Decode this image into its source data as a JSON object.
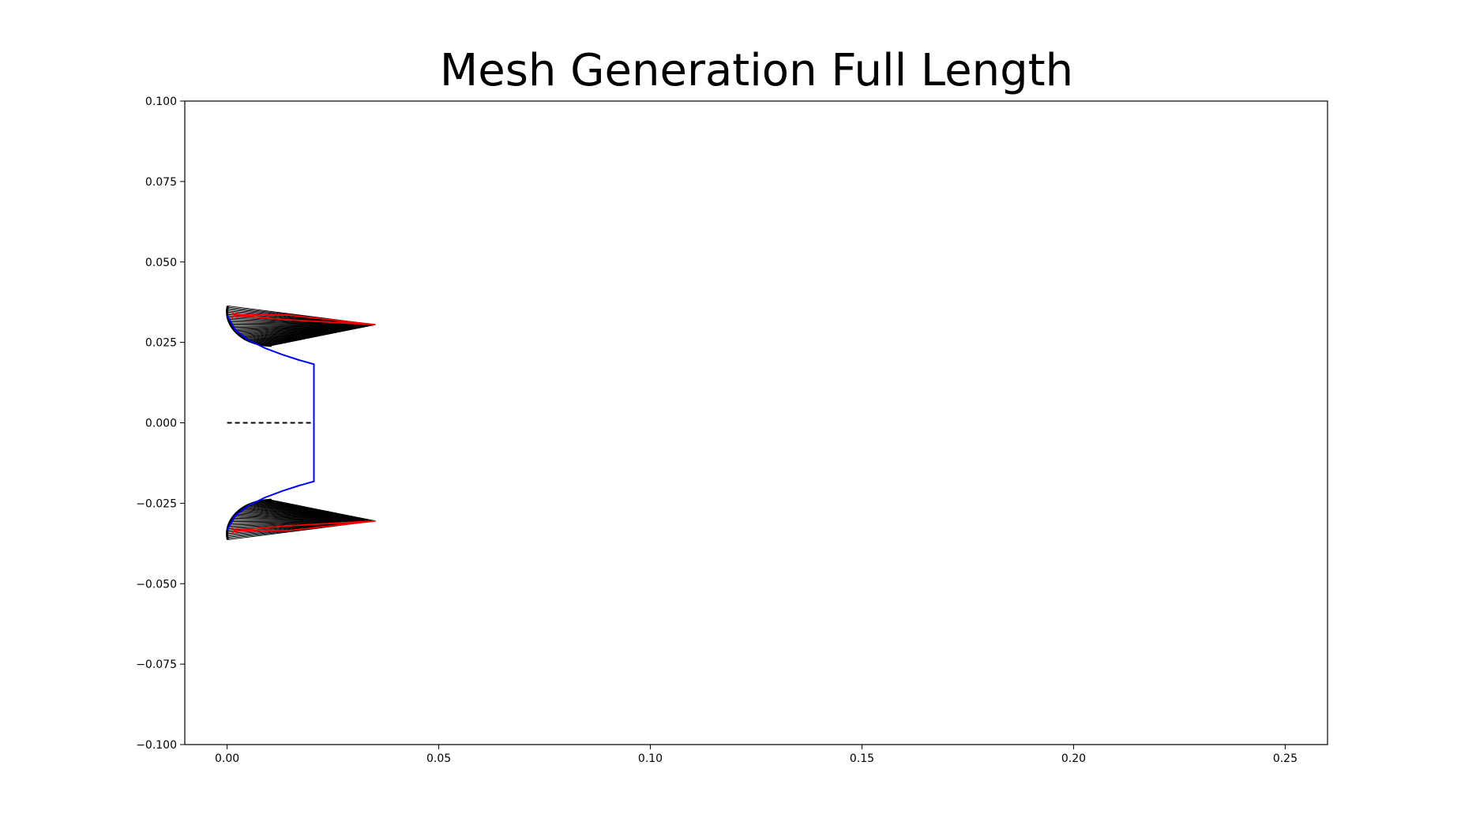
{
  "chart_data": {
    "type": "line",
    "title": "Mesh Generation Full Length",
    "xlabel": "",
    "ylabel": "",
    "xlim": [
      -0.01,
      0.26
    ],
    "ylim": [
      -0.1,
      0.1
    ],
    "x_ticks": [
      0.0,
      0.05,
      0.1,
      0.15,
      0.2,
      0.25
    ],
    "x_tick_labels": [
      "0.00",
      "0.05",
      "0.10",
      "0.15",
      "0.20",
      "0.25"
    ],
    "y_ticks": [
      0.1,
      0.075,
      0.05,
      0.025,
      0.0,
      -0.025,
      -0.05,
      -0.075,
      -0.1
    ],
    "y_tick_labels": [
      "0.100",
      "0.075",
      "0.050",
      "0.025",
      "0.000",
      "−0.025",
      "−0.050",
      "−0.075",
      "−0.100"
    ],
    "grid": false,
    "colors": {
      "contour": "#0000ff",
      "mesh": "#000000",
      "outline": "#ff0000",
      "axis_line": "#000000"
    },
    "series": [
      {
        "style": "blue-solid",
        "x": [
          0.0001,
          0.002,
          0.005,
          0.009,
          0.013,
          0.017,
          0.0205,
          0.0205,
          0.0205,
          0.017,
          0.013,
          0.009,
          0.005,
          0.002,
          0.0001
        ],
        "y": [
          0.0332,
          0.0288,
          0.0258,
          0.0232,
          0.0212,
          0.0195,
          0.0182,
          0.0,
          -0.0182,
          -0.0195,
          -0.0212,
          -0.0232,
          -0.0258,
          -0.0288,
          -0.0332
        ]
      },
      {
        "style": "black-dashed",
        "x": [
          0.0,
          0.0205
        ],
        "y": [
          0.0,
          0.0
        ]
      },
      {
        "style": "red-outline",
        "x": [
          0.0015,
          0.0145,
          0.035,
          0.0145,
          0.0015
        ],
        "y": [
          0.0335,
          0.0335,
          0.0305,
          0.032,
          0.0335
        ]
      },
      {
        "style": "red-outline",
        "x": [
          0.0015,
          0.0145,
          0.035,
          0.0145,
          0.0015
        ],
        "y": [
          -0.0335,
          -0.0335,
          -0.0305,
          -0.032,
          -0.0335
        ]
      }
    ],
    "mesh_regions": [
      {
        "tip": [
          0.035,
          0.0305
        ],
        "arc_center": [
          0.0105,
          0.0345
        ],
        "arc_radius": 0.0105,
        "arc_start_deg": 170,
        "arc_end_deg": 270,
        "line_count": 48
      },
      {
        "tip": [
          0.035,
          -0.0305
        ],
        "arc_center": [
          0.0105,
          -0.0345
        ],
        "arc_radius": 0.0105,
        "arc_start_deg": 190,
        "arc_end_deg": 90,
        "line_count": 48
      }
    ],
    "markers": [
      {
        "x": 0.0018,
        "y": 0.0335,
        "color": "#ff0000",
        "symbol": "x"
      },
      {
        "x": 0.0018,
        "y": -0.0335,
        "color": "#ff0000",
        "symbol": "x"
      }
    ]
  }
}
